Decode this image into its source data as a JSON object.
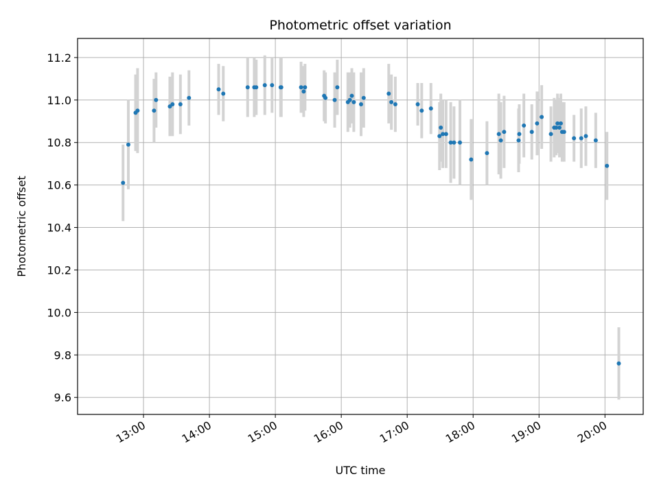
{
  "chart_data": {
    "type": "scatter",
    "title": "Photometric offset variation",
    "xlabel": "UTC time",
    "ylabel": "Photometric offset",
    "x_unit": "hours (UTC)",
    "xlim": [
      12.0,
      20.58
    ],
    "ylim": [
      9.52,
      11.29
    ],
    "x_ticks": [
      13,
      14,
      15,
      16,
      17,
      18,
      19,
      20
    ],
    "x_tick_labels": [
      "13:00",
      "14:00",
      "15:00",
      "16:00",
      "17:00",
      "18:00",
      "19:00",
      "20:00"
    ],
    "y_ticks": [
      9.6,
      9.8,
      10.0,
      10.2,
      10.4,
      10.6,
      10.8,
      11.0,
      11.2
    ],
    "y_tick_labels": [
      "9.6",
      "9.8",
      "10.0",
      "10.2",
      "10.4",
      "10.6",
      "10.8",
      "11.0",
      "11.2"
    ],
    "grid": true,
    "colors": {
      "point": "#1f77b4",
      "errorbar": "#d3d3d3",
      "grid": "#b0b0b0",
      "axes": "#000000"
    },
    "series": [
      {
        "x": [
          12.69,
          12.77,
          12.88,
          12.91,
          13.16,
          13.19,
          13.4,
          13.44,
          13.56,
          13.69,
          14.14,
          14.21,
          14.58,
          14.68,
          14.71,
          14.84,
          14.95,
          15.08,
          15.09,
          15.39,
          15.43,
          15.45,
          15.74,
          15.76,
          15.9,
          15.94,
          16.1,
          16.13,
          16.16,
          16.19,
          16.3,
          16.34,
          16.72,
          16.76,
          16.82,
          17.16,
          17.22,
          17.36,
          17.49,
          17.51,
          17.54,
          17.59,
          17.66,
          17.71,
          17.8,
          17.97,
          18.21,
          18.39,
          18.42,
          18.47,
          18.69,
          18.7,
          18.77,
          18.89,
          18.97,
          19.04,
          19.18,
          19.23,
          19.26,
          19.28,
          19.31,
          19.33,
          19.35,
          19.38,
          19.53,
          19.64,
          19.71,
          19.86,
          20.03,
          20.21
        ],
        "y": [
          10.61,
          10.79,
          10.94,
          10.95,
          10.95,
          11.0,
          10.97,
          10.98,
          10.98,
          11.01,
          11.05,
          11.03,
          11.06,
          11.06,
          11.06,
          11.07,
          11.07,
          11.06,
          11.06,
          11.06,
          11.04,
          11.06,
          11.02,
          11.01,
          11.0,
          11.06,
          10.99,
          11.0,
          11.02,
          10.99,
          10.98,
          11.01,
          11.03,
          10.99,
          10.98,
          10.98,
          10.95,
          10.96,
          10.83,
          10.87,
          10.84,
          10.84,
          10.8,
          10.8,
          10.8,
          10.72,
          10.75,
          10.84,
          10.81,
          10.85,
          10.81,
          10.84,
          10.88,
          10.85,
          10.89,
          10.92,
          10.84,
          10.87,
          10.87,
          10.89,
          10.87,
          10.89,
          10.85,
          10.85,
          10.82,
          10.82,
          10.83,
          10.81,
          10.69,
          9.76
        ],
        "err": [
          0.18,
          0.21,
          0.18,
          0.2,
          0.15,
          0.13,
          0.14,
          0.15,
          0.14,
          0.13,
          0.12,
          0.13,
          0.14,
          0.14,
          0.13,
          0.14,
          0.13,
          0.14,
          0.14,
          0.12,
          0.12,
          0.11,
          0.12,
          0.12,
          0.13,
          0.13,
          0.14,
          0.13,
          0.13,
          0.14,
          0.15,
          0.14,
          0.14,
          0.13,
          0.13,
          0.1,
          0.13,
          0.12,
          0.16,
          0.16,
          0.16,
          0.16,
          0.19,
          0.17,
          0.2,
          0.19,
          0.15,
          0.19,
          0.18,
          0.17,
          0.15,
          0.14,
          0.15,
          0.13,
          0.15,
          0.15,
          0.13,
          0.14,
          0.13,
          0.14,
          0.14,
          0.14,
          0.14,
          0.14,
          0.11,
          0.14,
          0.14,
          0.13,
          0.16,
          0.17
        ]
      }
    ]
  }
}
